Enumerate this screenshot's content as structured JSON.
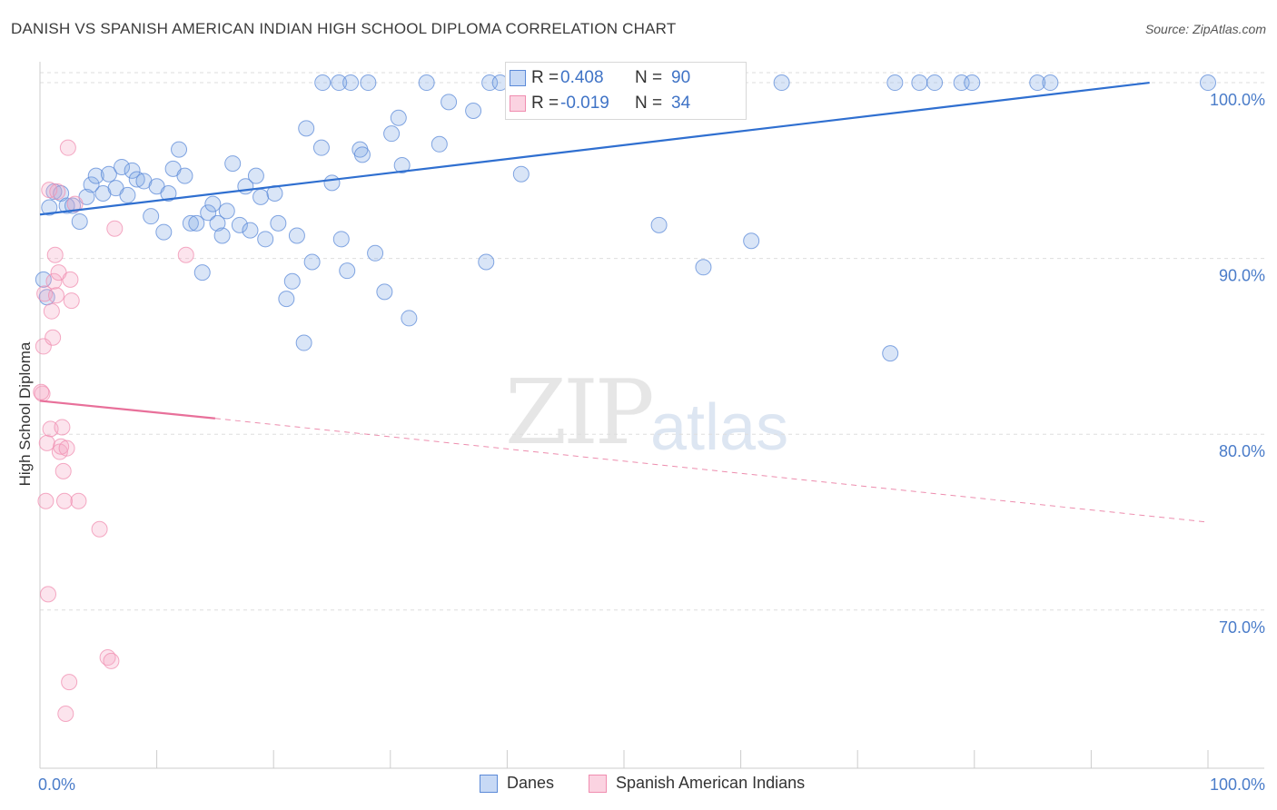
{
  "header": {
    "title": "DANISH VS SPANISH AMERICAN INDIAN HIGH SCHOOL DIPLOMA CORRELATION CHART",
    "source": "Source: ZipAtlas.com"
  },
  "watermark": {
    "zip": "ZIP",
    "atlas": "atlas"
  },
  "legend": {
    "rows": [
      {
        "r_label": "R =",
        "r_value": "0.408",
        "n_label": "N =",
        "n_value": "90",
        "color": "#5b8ad8"
      },
      {
        "r_label": "R =",
        "r_value": "-0.019",
        "n_label": "N =",
        "n_value": "34",
        "color": "#f08db0"
      }
    ]
  },
  "bottom_legend": [
    {
      "label": "Danes",
      "color": "#5b8ad8"
    },
    {
      "label": "Spanish American Indians",
      "color": "#f08db0"
    }
  ],
  "chart_data": {
    "type": "scatter",
    "title": "DANISH VS SPANISH AMERICAN INDIAN HIGH SCHOOL DIPLOMA CORRELATION CHART",
    "xlabel": "",
    "ylabel": "High School Diploma",
    "xlim": [
      0,
      100
    ],
    "ylim": [
      61,
      101.5
    ],
    "x_tick_labels": [
      "0.0%",
      "100.0%"
    ],
    "y_ticks": [
      70,
      80,
      90,
      100
    ],
    "y_tick_labels": [
      "70.0%",
      "80.0%",
      "90.0%",
      "100.0%"
    ],
    "grid": true,
    "series": [
      {
        "name": "Danes",
        "color": "#5b8ad8",
        "trend": {
          "x0": 0,
          "y0": 92.5,
          "x1": 95,
          "y1": 100,
          "dashed_to": null
        },
        "points": [
          [
            0.3,
            88.8
          ],
          [
            0.6,
            87.8
          ],
          [
            0.8,
            92.9
          ],
          [
            1.2,
            93.8
          ],
          [
            1.8,
            93.7
          ],
          [
            2.3,
            93.0
          ],
          [
            2.8,
            93.0
          ],
          [
            3.4,
            92.1
          ],
          [
            4.0,
            93.5
          ],
          [
            4.4,
            94.2
          ],
          [
            4.8,
            94.7
          ],
          [
            5.4,
            93.7
          ],
          [
            5.9,
            94.8
          ],
          [
            6.5,
            94.0
          ],
          [
            7.0,
            95.2
          ],
          [
            7.5,
            93.6
          ],
          [
            7.9,
            95.0
          ],
          [
            8.3,
            94.5
          ],
          [
            8.9,
            94.4
          ],
          [
            9.5,
            92.4
          ],
          [
            10.0,
            94.1
          ],
          [
            10.6,
            91.5
          ],
          [
            11.0,
            93.7
          ],
          [
            11.4,
            95.1
          ],
          [
            11.9,
            96.2
          ],
          [
            12.4,
            94.7
          ],
          [
            12.9,
            92.0
          ],
          [
            13.4,
            92.0
          ],
          [
            13.9,
            89.2
          ],
          [
            14.4,
            92.6
          ],
          [
            14.8,
            93.1
          ],
          [
            15.2,
            92.0
          ],
          [
            15.6,
            91.3
          ],
          [
            16.0,
            92.7
          ],
          [
            16.5,
            95.4
          ],
          [
            17.1,
            91.9
          ],
          [
            17.6,
            94.1
          ],
          [
            18.0,
            91.6
          ],
          [
            18.5,
            94.7
          ],
          [
            18.9,
            93.5
          ],
          [
            19.3,
            91.1
          ],
          [
            20.1,
            93.7
          ],
          [
            20.4,
            92.0
          ],
          [
            21.1,
            87.7
          ],
          [
            21.6,
            88.7
          ],
          [
            22.0,
            91.3
          ],
          [
            22.6,
            85.2
          ],
          [
            22.8,
            97.4
          ],
          [
            23.3,
            89.8
          ],
          [
            24.1,
            96.3
          ],
          [
            24.2,
            100.0
          ],
          [
            25.0,
            94.3
          ],
          [
            25.6,
            100.0
          ],
          [
            25.8,
            91.1
          ],
          [
            26.3,
            89.3
          ],
          [
            26.6,
            100.0
          ],
          [
            27.4,
            96.2
          ],
          [
            27.6,
            95.9
          ],
          [
            28.1,
            100.0
          ],
          [
            28.7,
            90.3
          ],
          [
            29.5,
            88.1
          ],
          [
            30.1,
            97.1
          ],
          [
            30.7,
            98.0
          ],
          [
            31.0,
            95.3
          ],
          [
            31.6,
            86.6
          ],
          [
            33.1,
            100.0
          ],
          [
            34.2,
            96.5
          ],
          [
            35.0,
            98.9
          ],
          [
            37.1,
            98.4
          ],
          [
            38.2,
            89.8
          ],
          [
            38.5,
            100.0
          ],
          [
            39.4,
            100.0
          ],
          [
            41.2,
            94.8
          ],
          [
            43.5,
            100.0
          ],
          [
            47.8,
            100.0
          ],
          [
            52.3,
            100.0
          ],
          [
            53.0,
            91.9
          ],
          [
            56.8,
            89.5
          ],
          [
            58.1,
            100.0
          ],
          [
            60.9,
            91.0
          ],
          [
            63.5,
            100.0
          ],
          [
            72.8,
            84.6
          ],
          [
            73.2,
            100.0
          ],
          [
            75.3,
            100.0
          ],
          [
            76.6,
            100.0
          ],
          [
            78.9,
            100.0
          ],
          [
            79.8,
            100.0
          ],
          [
            85.4,
            100.0
          ],
          [
            86.5,
            100.0
          ],
          [
            100.0,
            100.0
          ]
        ]
      },
      {
        "name": "Spanish American Indians",
        "color": "#f08db0",
        "trend": {
          "x0": 0,
          "y0": 81.9,
          "x1": 15,
          "y1": 80.9,
          "dashed_to": [
            100,
            75.0
          ]
        },
        "points": [
          [
            0.2,
            82.3
          ],
          [
            0.3,
            85.0
          ],
          [
            0.4,
            88.0
          ],
          [
            0.5,
            76.2
          ],
          [
            0.6,
            79.5
          ],
          [
            0.7,
            70.9
          ],
          [
            0.8,
            93.9
          ],
          [
            0.9,
            80.3
          ],
          [
            1.0,
            87.0
          ],
          [
            1.1,
            85.5
          ],
          [
            1.2,
            88.7
          ],
          [
            1.3,
            90.2
          ],
          [
            1.4,
            87.9
          ],
          [
            1.5,
            93.8
          ],
          [
            1.6,
            89.2
          ],
          [
            1.7,
            79.0
          ],
          [
            1.8,
            79.3
          ],
          [
            1.9,
            80.4
          ],
          [
            2.0,
            77.9
          ],
          [
            2.1,
            76.2
          ],
          [
            2.2,
            64.1
          ],
          [
            2.3,
            79.2
          ],
          [
            2.4,
            96.3
          ],
          [
            2.5,
            65.9
          ],
          [
            2.6,
            88.8
          ],
          [
            2.7,
            87.6
          ],
          [
            3.0,
            93.1
          ],
          [
            3.3,
            76.2
          ],
          [
            5.1,
            74.6
          ],
          [
            5.8,
            67.3
          ],
          [
            6.1,
            67.1
          ],
          [
            6.4,
            91.7
          ],
          [
            12.5,
            90.2
          ],
          [
            0.1,
            82.4
          ]
        ]
      }
    ]
  }
}
